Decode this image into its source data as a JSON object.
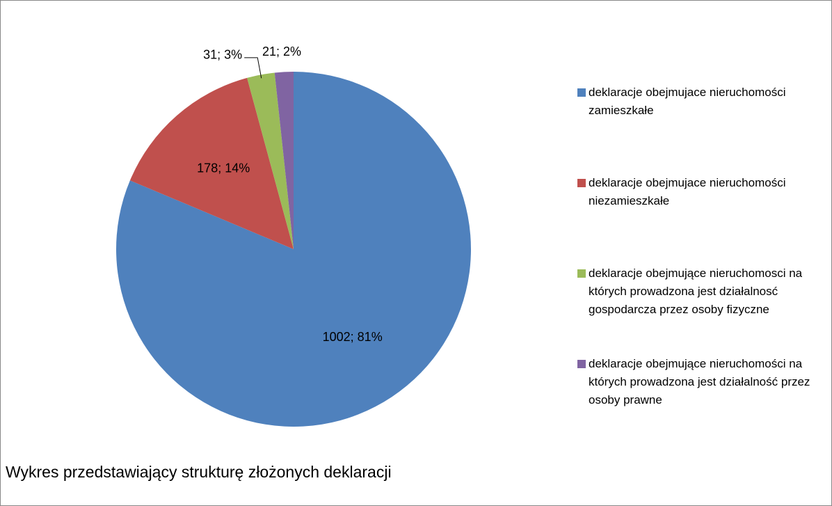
{
  "chart_data": {
    "type": "pie",
    "title": "Wykres przedstawiający strukturę złożonych deklaracji",
    "categories": [
      "deklaracje obejmujace nieruchomości zamieszkałe",
      "deklaracje obejmujace nieruchomości niezamieszkałe",
      "deklaracje obejmujące nieruchomosci na których prowadzona jest działalnosć gospodarcza przez osoby fizyczne",
      "deklaracje obejmujące nieruchomości na których prowadzona jest działalność przez osoby prawne"
    ],
    "values": [
      1002,
      178,
      31,
      21
    ],
    "value_labels": [
      "1002; 81%",
      "178; 14%",
      "31; 3%",
      "21; 2%"
    ],
    "colors": [
      "#4f81bd",
      "#c0504d",
      "#9bbb59",
      "#8064a2"
    ],
    "legend": "right"
  }
}
